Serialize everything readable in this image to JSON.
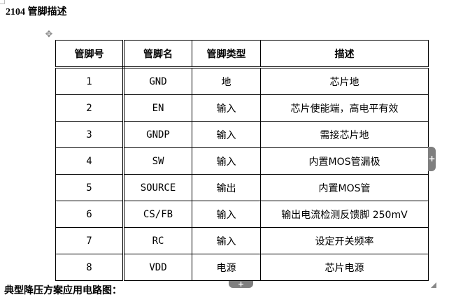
{
  "heading": {
    "number": "2104",
    "title": "管脚描述"
  },
  "table": {
    "headers": [
      "管脚号",
      "管脚名",
      "管脚类型",
      "描述"
    ],
    "rows": [
      [
        "1",
        "GND",
        "地",
        "芯片地"
      ],
      [
        "2",
        "EN",
        "输入",
        "芯片使能端，高电平有效"
      ],
      [
        "3",
        "GNDP",
        "输入",
        "需接芯片地"
      ],
      [
        "4",
        "SW",
        "输入",
        "内置MOS管漏极"
      ],
      [
        "5",
        "SOURCE",
        "输出",
        "内置MOS管"
      ],
      [
        "6",
        "CS/FB",
        "输入",
        "输出电流检测反馈脚 250mV"
      ],
      [
        "7",
        "RC",
        "输入",
        "设定开关频率"
      ],
      [
        "8",
        "VDD",
        "电源",
        "芯片电源"
      ]
    ]
  },
  "icons": {
    "move": "move-icon",
    "add_column": "plus-icon",
    "add_row": "plus-icon",
    "resize": "resize-icon"
  },
  "handles": {
    "add_column": "+",
    "add_row": "+",
    "move": "✥"
  },
  "next_line": "典型降压方案应用电路图："
}
